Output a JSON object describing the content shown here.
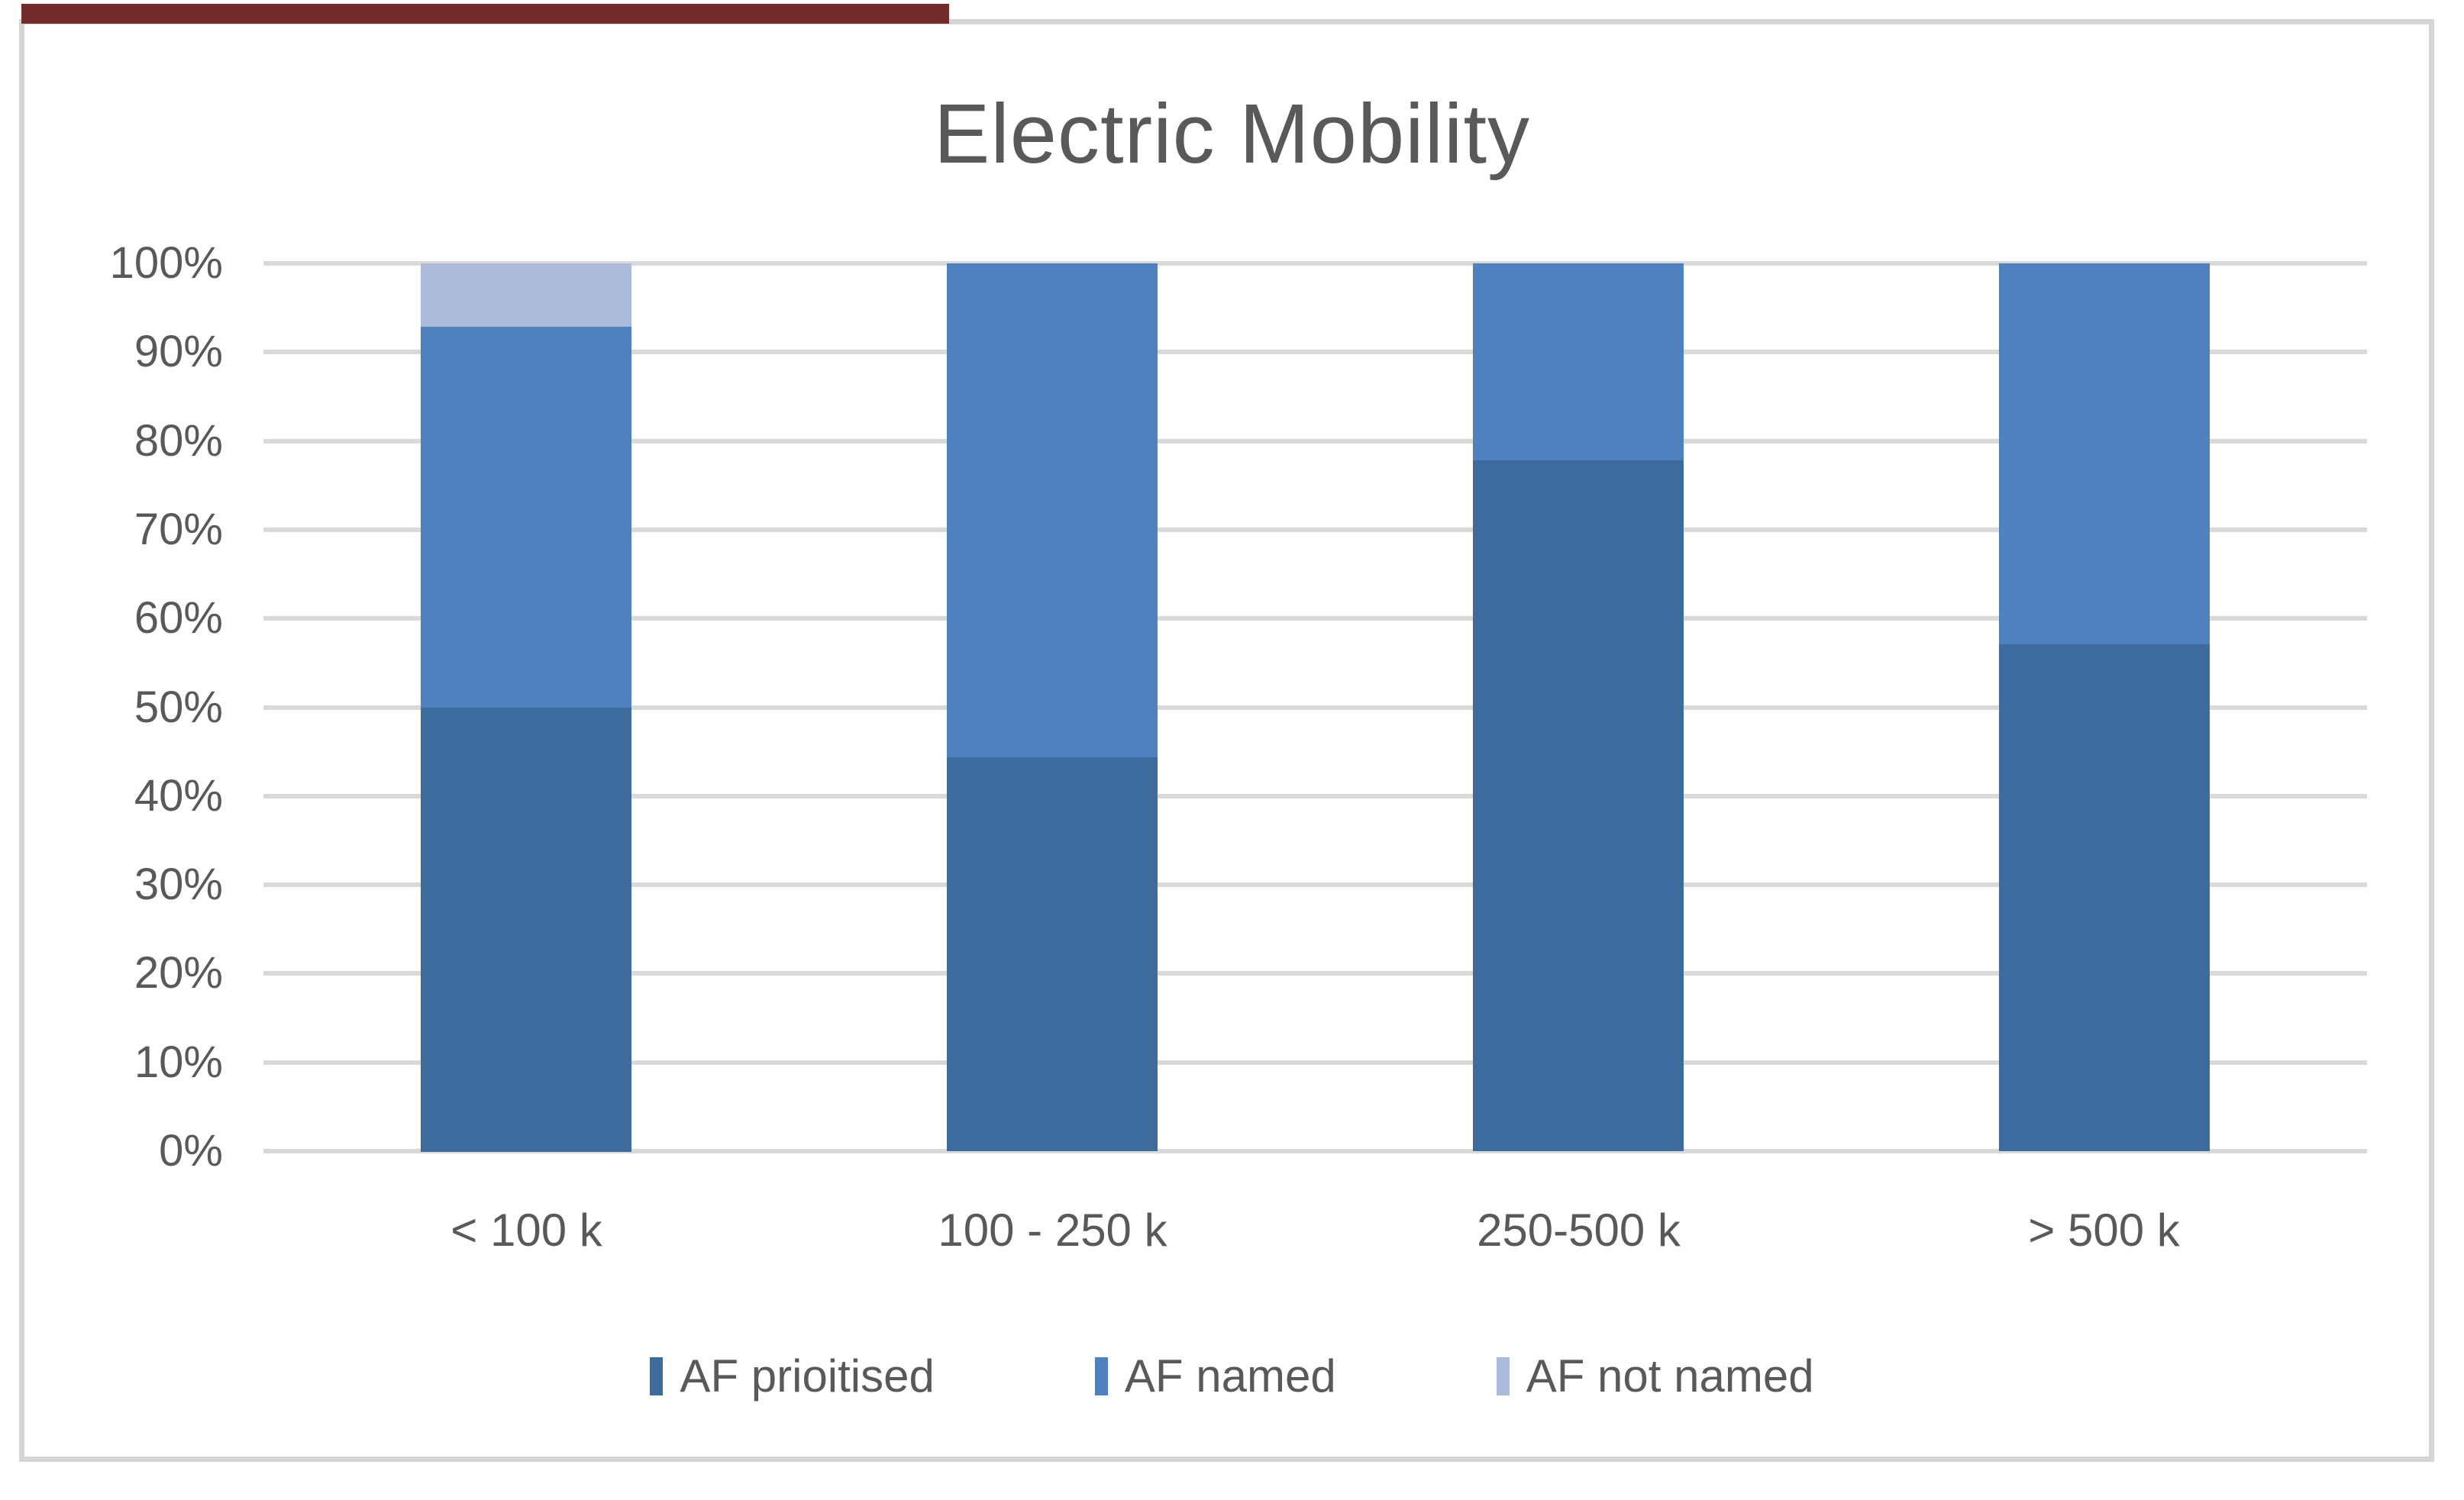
{
  "chart_data": {
    "type": "bar",
    "stacked": true,
    "title": "Electric Mobility",
    "categories": [
      "< 100 k",
      "100 - 250 k",
      "250-500 k",
      "> 500 k"
    ],
    "series": [
      {
        "name": "AF prioitised",
        "color": "#3E6B9D",
        "values": [
          50.0,
          44.4,
          77.8,
          57.1
        ]
      },
      {
        "name": "AF named",
        "color": "#4E81BD",
        "values": [
          42.9,
          55.6,
          22.2,
          42.9
        ]
      },
      {
        "name": "AF not named",
        "color": "#ADBBDA",
        "values": [
          7.1,
          0,
          0,
          0
        ]
      }
    ],
    "xlabel": "",
    "ylabel": "",
    "ylim": [
      0,
      100
    ],
    "yticks": [
      "0%",
      "10%",
      "20%",
      "30%",
      "40%",
      "50%",
      "60%",
      "70%",
      "80%",
      "90%",
      "100%"
    ],
    "grid": true,
    "legend_position": "bottom",
    "colors": {
      "text": "#595959",
      "gridline": "#d9d9d9",
      "frame_border": "#d5d5d5",
      "top_strip": "#742b2b"
    }
  }
}
